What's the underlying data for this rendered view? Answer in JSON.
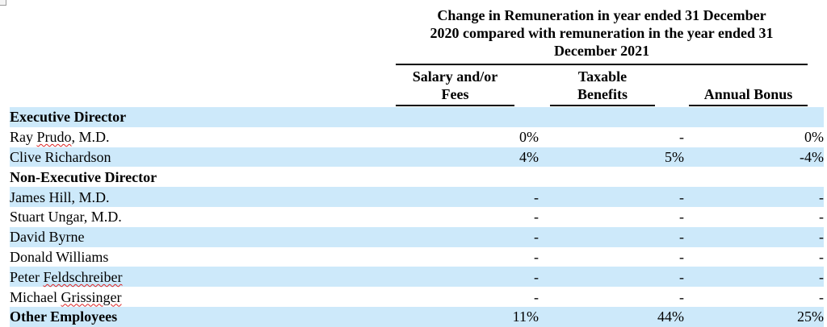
{
  "header": {
    "group_line1": "Change in Remuneration in year ended 31 December",
    "group_line2": "2020 compared with remuneration in the year ended 31",
    "group_line3": "December 2021",
    "col1_line1": "Salary and/or",
    "col1_line2": "Fees",
    "col2_line1": "Taxable",
    "col2_line2": "Benefits",
    "col3_line1": "Annual Bonus"
  },
  "sections": {
    "executive": "Executive Director",
    "non_executive": "Non-Executive Director"
  },
  "rows": {
    "prudo": {
      "pre": "Ray ",
      "flag": "Prudo",
      "post": ", M.D.",
      "c1": "0%",
      "c2": "-",
      "c3": "0%"
    },
    "richardson": {
      "name": "Clive Richardson",
      "c1": "4%",
      "c2": "5%",
      "c3": "-4%"
    },
    "hill": {
      "name": "James Hill, M.D.",
      "c1": "-",
      "c2": "-",
      "c3": "-"
    },
    "ungar": {
      "name": "Stuart Ungar, M.D.",
      "c1": "-",
      "c2": "-",
      "c3": "-"
    },
    "byrne": {
      "name": "David Byrne",
      "c1": "-",
      "c2": "-",
      "c3": "-"
    },
    "williams": {
      "name": "Donald Williams",
      "c1": "-",
      "c2": "-",
      "c3": "-"
    },
    "feldschreiber": {
      "pre": "Peter ",
      "flag": "Feldschreiber",
      "c1": "-",
      "c2": "-",
      "c3": "-"
    },
    "grissinger": {
      "pre": "Michael ",
      "flag": "Grissinger",
      "c1": "-",
      "c2": "-",
      "c3": "-"
    },
    "other": {
      "name": "Other Employees",
      "c1": "11%",
      "c2": "44%",
      "c3": "25%"
    }
  }
}
